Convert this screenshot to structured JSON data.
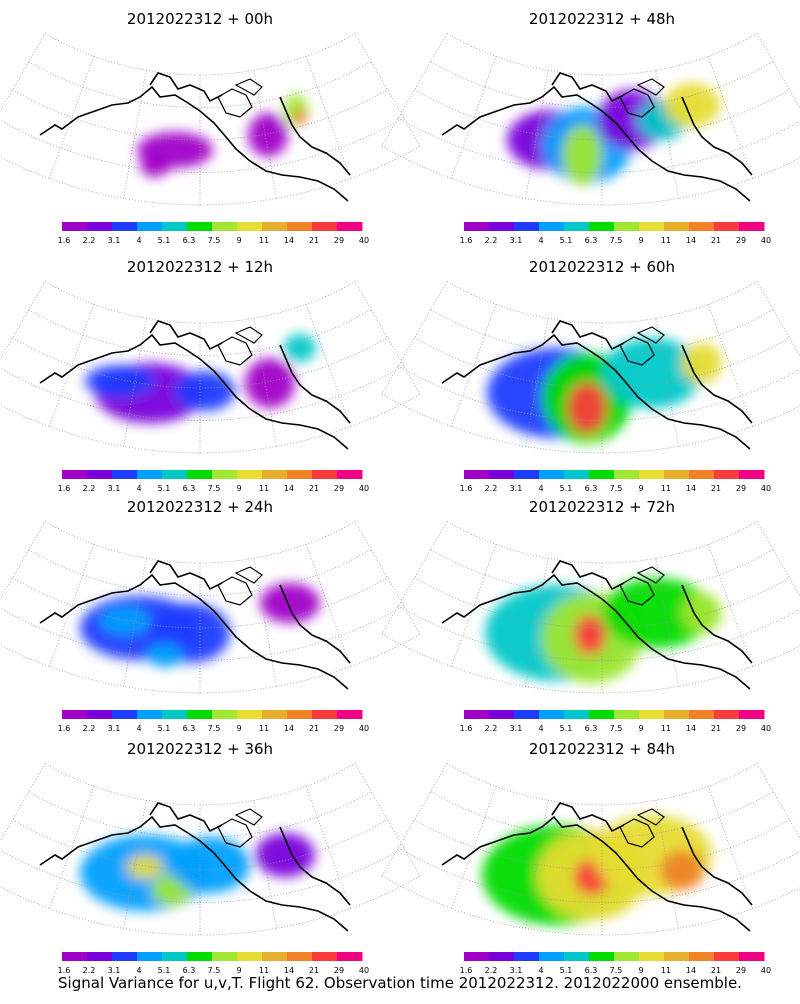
{
  "caption": "Signal Variance for u,v,T. Flight 62. Observation time 2012022312. 2012022000 ensemble.",
  "legend": {
    "labels": [
      "1.6",
      "2.2",
      "3.1",
      "4",
      "5.1",
      "6.3",
      "7.5",
      "9",
      "11",
      "14",
      "21",
      "29",
      "40"
    ],
    "colors": [
      "#a000c8",
      "#7800dc",
      "#1e3cff",
      "#00a0ff",
      "#00c8c8",
      "#00dc00",
      "#a0e632",
      "#e6dc32",
      "#e6af2d",
      "#f08228",
      "#fa3c3c",
      "#f00082"
    ]
  },
  "panels": [
    {
      "title": "2012022312 + 00h",
      "spread": 0.25
    },
    {
      "title": "2012022312 + 48h",
      "spread": 0.8
    },
    {
      "title": "2012022312 + 12h",
      "spread": 0.35
    },
    {
      "title": "2012022312 + 60h",
      "spread": 0.9
    },
    {
      "title": "2012022312 + 24h",
      "spread": 0.5
    },
    {
      "title": "2012022312 + 72h",
      "spread": 0.95
    },
    {
      "title": "2012022312 + 36h",
      "spread": 0.65
    },
    {
      "title": "2012022312 + 84h",
      "spread": 1.0
    }
  ]
}
